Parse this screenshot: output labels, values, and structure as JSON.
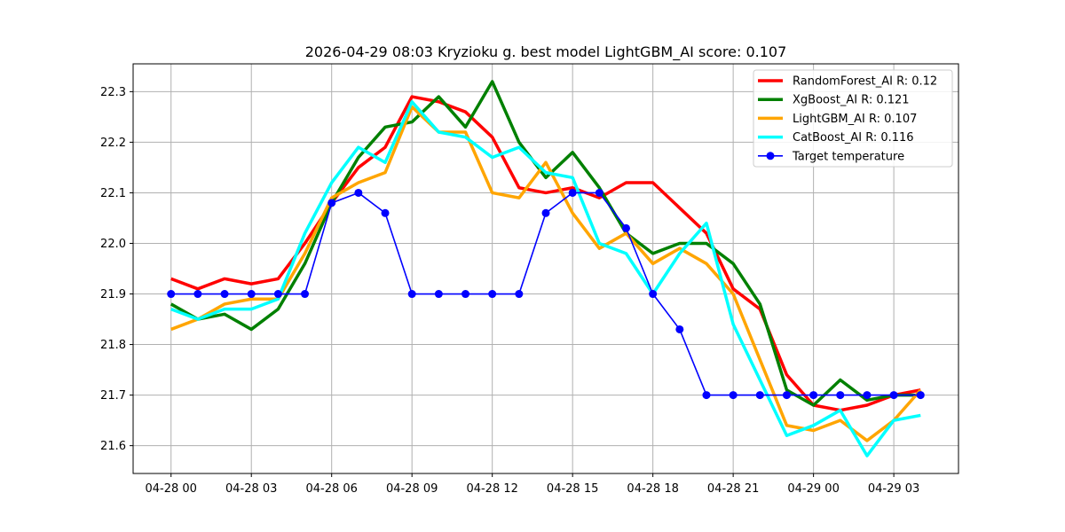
{
  "chart_data": {
    "type": "line",
    "title": "2026-04-29 08:03 Kryzioku g. best model LightGBM_AI score: 0.107",
    "xlabel": "",
    "ylabel": "",
    "x": [
      "2026-04-28 00:00",
      "2026-04-28 01:00",
      "2026-04-28 02:00",
      "2026-04-28 03:00",
      "2026-04-28 04:00",
      "2026-04-28 05:00",
      "2026-04-28 06:00",
      "2026-04-28 07:00",
      "2026-04-28 08:00",
      "2026-04-28 09:00",
      "2026-04-28 10:00",
      "2026-04-28 11:00",
      "2026-04-28 12:00",
      "2026-04-28 13:00",
      "2026-04-28 14:00",
      "2026-04-28 15:00",
      "2026-04-28 16:00",
      "2026-04-28 17:00",
      "2026-04-28 18:00",
      "2026-04-28 19:00",
      "2026-04-28 20:00",
      "2026-04-28 21:00",
      "2026-04-28 22:00",
      "2026-04-28 23:00",
      "2026-04-29 00:00",
      "2026-04-29 01:00",
      "2026-04-29 02:00",
      "2026-04-29 03:00",
      "2026-04-29 04:00"
    ],
    "x_ticks": [
      "04-28 00",
      "04-28 03",
      "04-28 06",
      "04-28 09",
      "04-28 12",
      "04-28 15",
      "04-28 18",
      "04-28 21",
      "04-29 00",
      "04-29 03"
    ],
    "x_tick_values": [
      "2026-04-28 00:00",
      "2026-04-28 03:00",
      "2026-04-28 06:00",
      "2026-04-28 09:00",
      "2026-04-28 12:00",
      "2026-04-28 15:00",
      "2026-04-28 18:00",
      "2026-04-28 21:00",
      "2026-04-29 00:00",
      "2026-04-29 03:00"
    ],
    "xlim": [
      "2026-04-27 22:35",
      "2026-04-29 05:25"
    ],
    "ylim": [
      21.545,
      22.355
    ],
    "y_ticks": [
      21.6,
      21.7,
      21.8,
      21.9,
      22.0,
      22.1,
      22.2,
      22.3
    ],
    "y_tick_labels": [
      "21.6",
      "21.7",
      "21.8",
      "21.9",
      "22.0",
      "22.1",
      "22.2",
      "22.3"
    ],
    "grid": true,
    "legend_position": "top-right",
    "series": [
      {
        "name": "RandomForest_AI R: 0.12",
        "color": "#ff0000",
        "style": "line-thick",
        "values": [
          21.93,
          21.91,
          21.93,
          21.92,
          21.93,
          22.0,
          22.08,
          22.15,
          22.19,
          22.29,
          22.28,
          22.26,
          22.21,
          22.11,
          22.1,
          22.11,
          22.09,
          22.12,
          22.12,
          22.07,
          22.02,
          21.91,
          21.87,
          21.74,
          21.68,
          21.67,
          21.68,
          21.7,
          21.71
        ]
      },
      {
        "name": "XgBoost_AI R: 0.121",
        "color": "#008000",
        "style": "line-thick",
        "values": [
          21.88,
          21.85,
          21.86,
          21.83,
          21.87,
          21.96,
          22.08,
          22.17,
          22.23,
          22.24,
          22.29,
          22.23,
          22.32,
          22.2,
          22.13,
          22.18,
          22.11,
          22.02,
          21.98,
          22.0,
          22.0,
          21.96,
          21.88,
          21.71,
          21.68,
          21.73,
          21.69,
          21.7,
          21.7
        ]
      },
      {
        "name": "LightGBM_AI R: 0.107",
        "color": "#ffa500",
        "style": "line-thick",
        "values": [
          21.83,
          21.85,
          21.88,
          21.89,
          21.89,
          21.98,
          22.09,
          22.12,
          22.14,
          22.27,
          22.22,
          22.22,
          22.1,
          22.09,
          22.16,
          22.06,
          21.99,
          22.02,
          21.96,
          21.99,
          21.96,
          21.9,
          21.77,
          21.64,
          21.63,
          21.65,
          21.61,
          21.65,
          21.71
        ]
      },
      {
        "name": "CatBoost_AI R: 0.116",
        "color": "#00ffff",
        "style": "line-thick",
        "values": [
          21.87,
          21.85,
          21.87,
          21.87,
          21.89,
          22.02,
          22.12,
          22.19,
          22.16,
          22.28,
          22.22,
          22.21,
          22.17,
          22.19,
          22.14,
          22.13,
          22.0,
          21.98,
          21.9,
          21.98,
          22.04,
          21.84,
          21.73,
          21.62,
          21.64,
          21.67,
          21.58,
          21.65,
          21.66
        ]
      },
      {
        "name": "Target temperature",
        "color": "#0000ff",
        "style": "line-markers",
        "values": [
          21.9,
          21.9,
          21.9,
          21.9,
          21.9,
          21.9,
          22.08,
          22.1,
          22.06,
          21.9,
          21.9,
          21.9,
          21.9,
          21.9,
          22.06,
          22.1,
          22.1,
          22.03,
          21.9,
          21.83,
          21.7,
          21.7,
          21.7,
          21.7,
          21.7,
          21.7,
          21.7,
          21.7,
          21.7
        ]
      }
    ]
  }
}
